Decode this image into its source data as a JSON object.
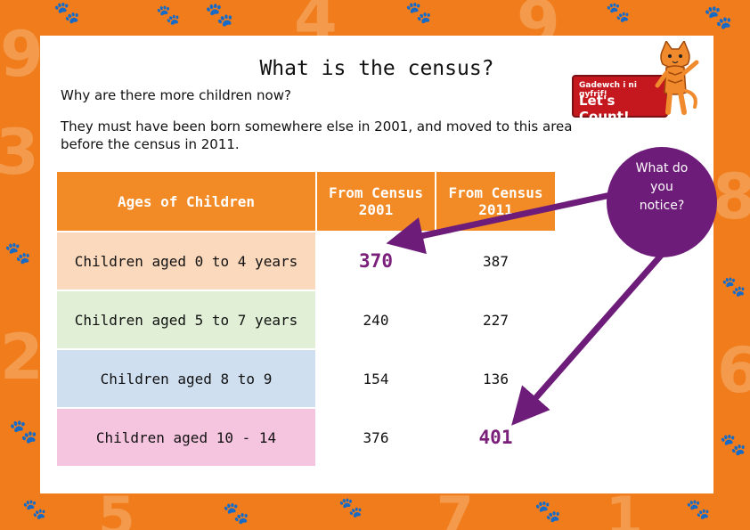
{
  "page": {
    "title": "What is the census?",
    "question": "Why are there more children now?",
    "explanation": "They must have been born somewhere else in 2001, and moved to this area before the census in 2011."
  },
  "logo": {
    "tagline": "Gadewch i ni gyfrif!",
    "name": "Let's Count!"
  },
  "table": {
    "headers": [
      "Ages of Children",
      "From Census 2001",
      "From Census 2011"
    ],
    "rows": [
      {
        "label": "Children aged 0 to 4 years",
        "v2001": "370",
        "v2011": "387"
      },
      {
        "label": "Children aged 5 to 7 years",
        "v2001": "240",
        "v2011": "227"
      },
      {
        "label": "Children aged 8 to 9",
        "v2001": "154",
        "v2011": "136"
      },
      {
        "label": "Children aged 10 - 14",
        "v2001": "376",
        "v2011": "401"
      }
    ]
  },
  "callout": {
    "text": "What do you notice?",
    "color": "#6e1c79"
  },
  "colors": {
    "background": "#f07c1b",
    "header": "#f28a25",
    "highlight": "#7a1f7a"
  }
}
